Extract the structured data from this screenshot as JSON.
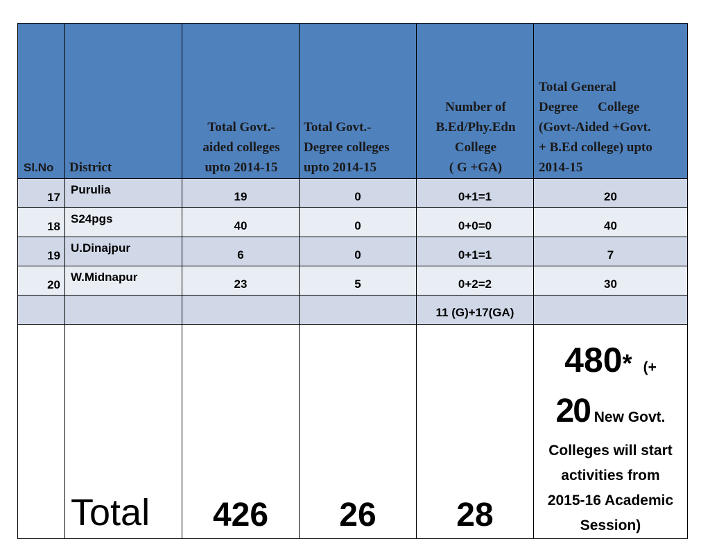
{
  "headers": {
    "sl": "Sl.No",
    "district": "District",
    "aided_lines": [
      "Total Govt.-",
      "aided colleges",
      "upto 2014-15"
    ],
    "degree_lines": [
      "Total Govt.-",
      "Degree colleges",
      "upto 2014-15"
    ],
    "bed_lines": [
      "Number of",
      "B.Ed/Phy.Edn",
      "College",
      "( G +GA)"
    ],
    "general_lines": [
      "Total General",
      "Degree      College",
      "(Govt-Aided +Govt.",
      "+ B.Ed college)  upto",
      "2014-15"
    ]
  },
  "rows": [
    {
      "sl": "17",
      "district": "Purulia",
      "aided": "19",
      "degree": "0",
      "bed": "0+1=1",
      "general": "20"
    },
    {
      "sl": "18",
      "district": "S24pgs",
      "aided": "40",
      "degree": "0",
      "bed": "0+0=0",
      "general": "40"
    },
    {
      "sl": "19",
      "district": "U.Dinajpur",
      "aided": "6",
      "degree": "0",
      "bed": "0+1=1",
      "general": "7"
    },
    {
      "sl": "20",
      "district": "W.Midnapur",
      "aided": "23",
      "degree": "5",
      "bed": "0+2=2",
      "general": "30"
    }
  ],
  "subtotal_row": {
    "bed": "11 (G)+17(GA)"
  },
  "total": {
    "label": "Total",
    "aided": "426",
    "degree": "26",
    "bed": "28",
    "general_value": "480",
    "general_star": "*",
    "general_note_open": "(+",
    "general_note_new": "20",
    "general_note_text": "New Govt.",
    "general_note_lines": [
      "Colleges will start",
      "activities from",
      "2015-16 Academic",
      "Session)"
    ]
  }
}
